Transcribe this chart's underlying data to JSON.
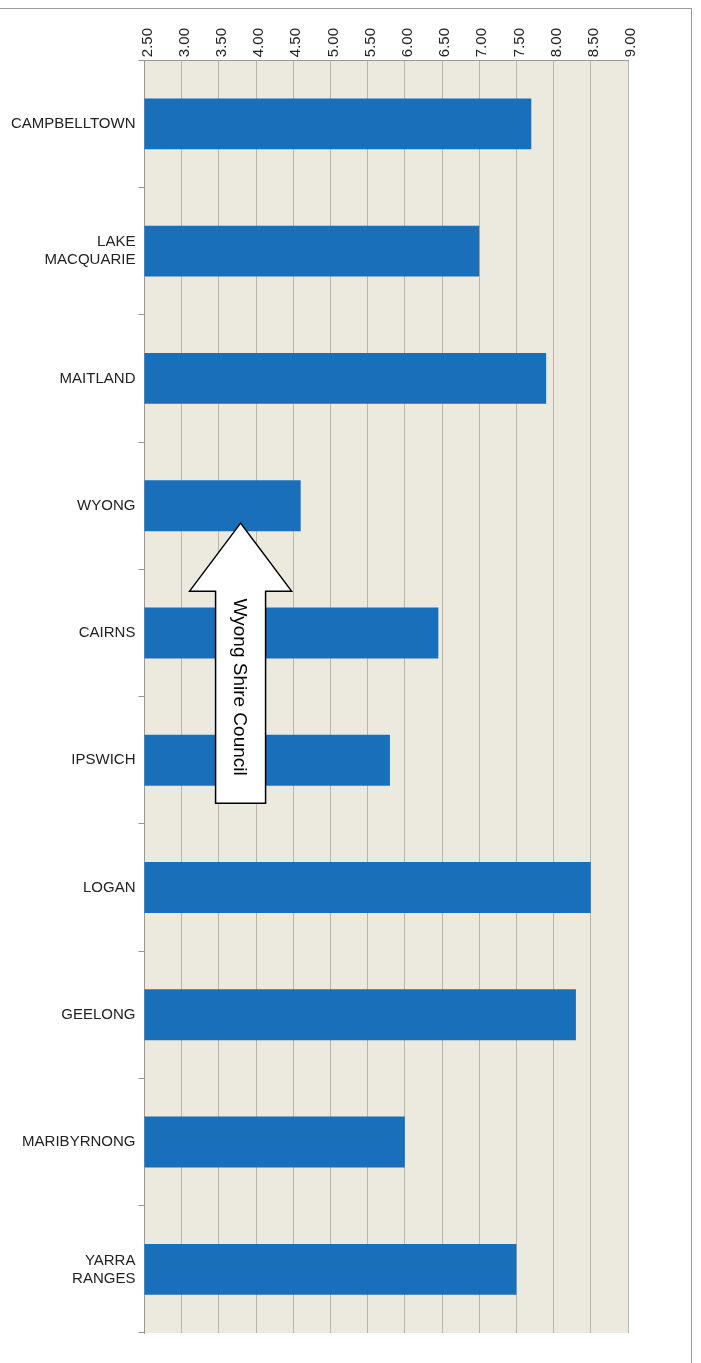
{
  "chart_data": {
    "type": "bar",
    "orientation": "horizontal",
    "categories": [
      "CAMPBELLTOWN",
      "LAKE MACQUARIE",
      "MAITLAND",
      "WYONG",
      "CAIRNS",
      "IPSWICH",
      "LOGAN",
      "GEELONG",
      "MARIBYRNONG",
      "YARRA RANGES"
    ],
    "values": [
      7.7,
      7.0,
      7.9,
      4.6,
      6.45,
      5.8,
      8.5,
      8.3,
      6.0,
      7.5
    ],
    "color": "#1a6fba",
    "xlim": [
      2.5,
      9
    ],
    "xticks": [
      {
        "value": 2.5,
        "label": "2.50"
      },
      {
        "value": 3,
        "label": "3.00"
      },
      {
        "value": 3.5,
        "label": "3.50"
      },
      {
        "value": 4,
        "label": "4.00"
      },
      {
        "value": 4.5,
        "label": "4.50"
      },
      {
        "value": 5,
        "label": "5.00"
      },
      {
        "value": 5.5,
        "label": "5.50"
      },
      {
        "value": 6,
        "label": "6.00"
      },
      {
        "value": 6.5,
        "label": "6.50"
      },
      {
        "value": 7,
        "label": "7.00"
      },
      {
        "value": 7.5,
        "label": "7.50"
      },
      {
        "value": 8,
        "label": "8.00"
      },
      {
        "value": 8.5,
        "label": "8.50"
      },
      {
        "value": 9,
        "label": "9.00"
      }
    ],
    "grid": "x",
    "legend": false,
    "annotations": [
      "Wyong Shire Council"
    ]
  }
}
